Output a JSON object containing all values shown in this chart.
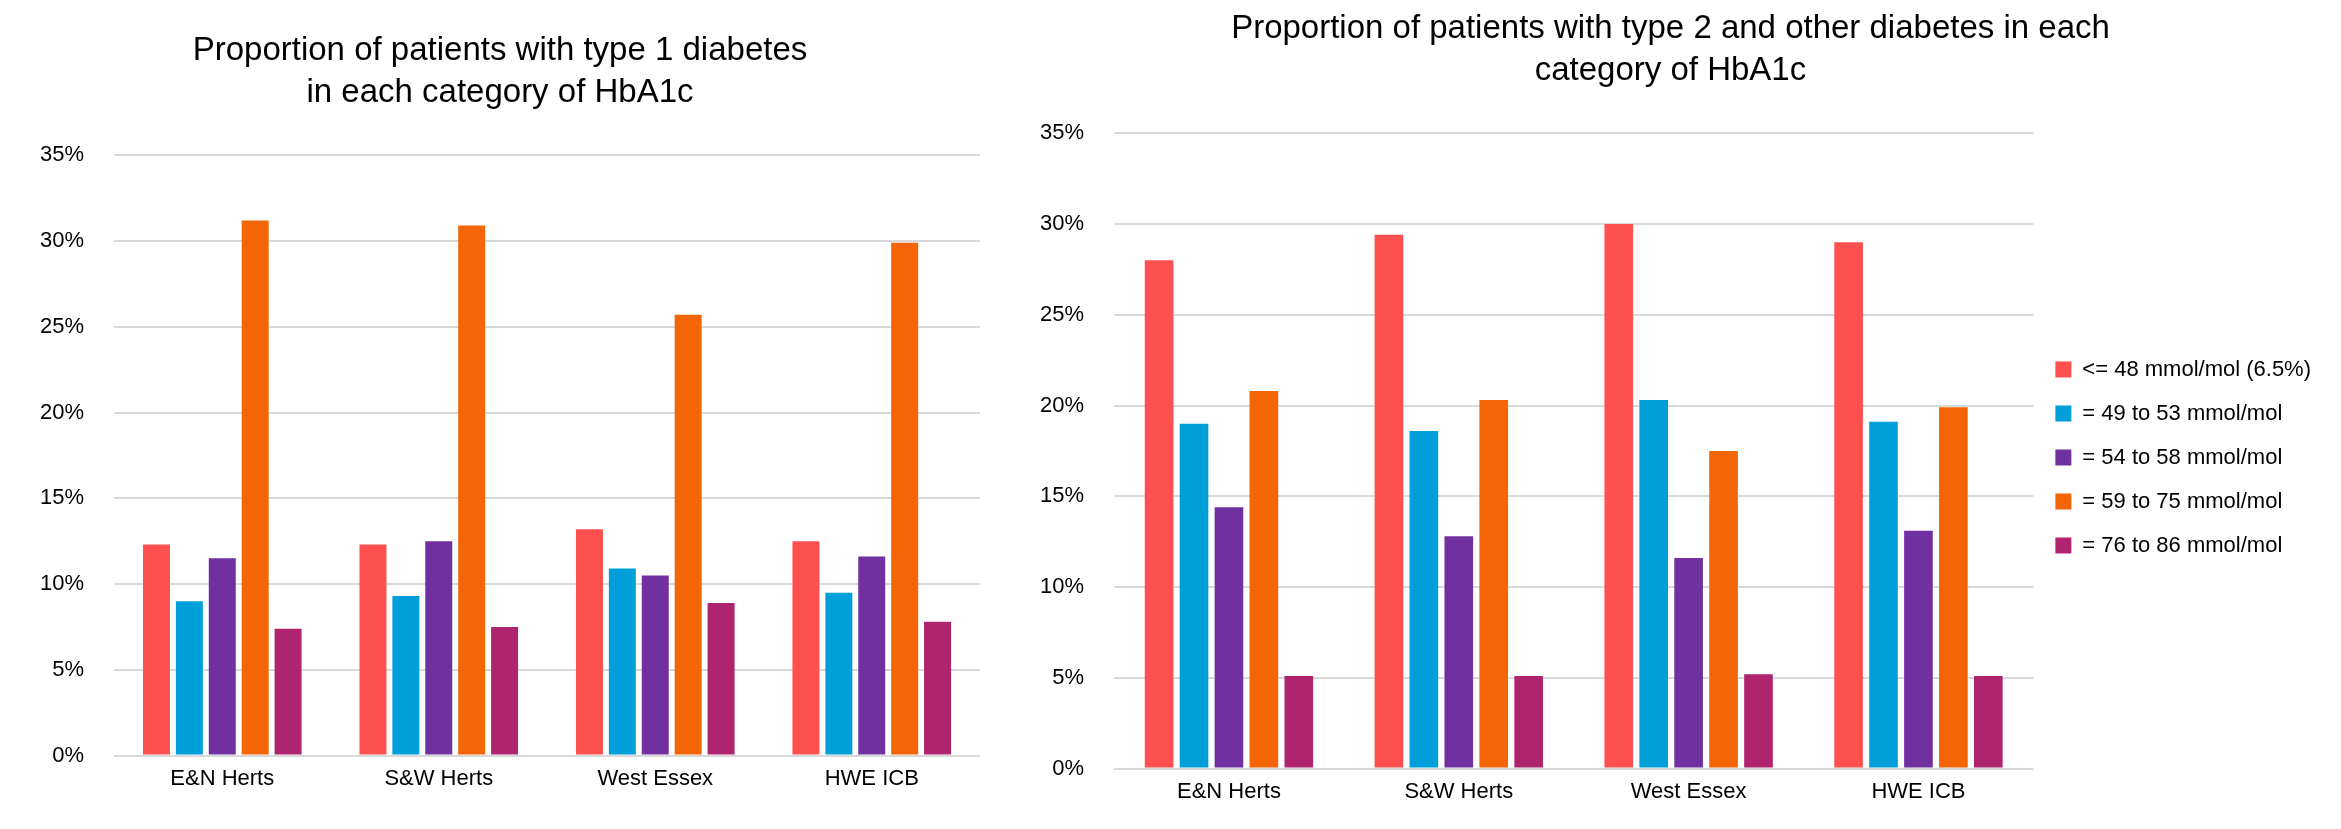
{
  "chart_data": [
    {
      "type": "bar",
      "title": "Proportion of patients with type 1 diabetes in each category of HbA1c",
      "categories": [
        "E&N Herts",
        "S&W Herts",
        "West Essex",
        "HWE ICB"
      ],
      "series": [
        {
          "color": "#ff5050",
          "values": [
            12.3,
            12.3,
            13.2,
            12.5
          ]
        },
        {
          "color": "#009fd9",
          "values": [
            9.0,
            9.3,
            10.9,
            9.5
          ]
        },
        {
          "color": "#7030a0",
          "values": [
            11.5,
            12.5,
            10.5,
            11.6
          ]
        },
        {
          "color": "#f46505",
          "values": [
            31.2,
            30.9,
            25.7,
            29.9
          ]
        },
        {
          "color": "#ae246e",
          "values": [
            7.4,
            7.5,
            8.9,
            7.8
          ]
        }
      ],
      "ylim": [
        0,
        35
      ],
      "yticks": [
        {
          "value": 0,
          "label": "0%"
        },
        {
          "value": 5,
          "label": "5%"
        },
        {
          "value": 10,
          "label": "10%"
        },
        {
          "value": 15,
          "label": "15%"
        },
        {
          "value": 20,
          "label": "20%"
        },
        {
          "value": 25,
          "label": "25%"
        },
        {
          "value": 30,
          "label": "30%"
        },
        {
          "value": 35,
          "label": "35%"
        }
      ],
      "grid": "y",
      "legend": false
    },
    {
      "type": "bar",
      "title": "Proportion of patients with type 2 and other diabetes in each category of HbA1c",
      "categories": [
        "E&N Herts",
        "S&W Herts",
        "West Essex",
        "HWE ICB"
      ],
      "series": [
        {
          "name": "<= 48 mmol/mol (6.5%)",
          "color": "#ff5050",
          "values": [
            28.0,
            29.4,
            30.0,
            29.0
          ]
        },
        {
          "name": "= 49 to 53 mmol/mol",
          "color": "#009fd9",
          "values": [
            19.0,
            18.6,
            20.3,
            19.1
          ]
        },
        {
          "name": "= 54 to 58 mmol/mol",
          "color": "#7030a0",
          "values": [
            14.4,
            12.8,
            11.6,
            13.1
          ]
        },
        {
          "name": "= 59 to 75 mmol/mol",
          "color": "#f46505",
          "values": [
            20.8,
            20.3,
            17.5,
            19.9
          ]
        },
        {
          "name": "= 76 to 86 mmol/mol",
          "color": "#ae246e",
          "values": [
            5.1,
            5.1,
            5.2,
            5.1
          ]
        }
      ],
      "ylim": [
        0,
        35
      ],
      "yticks": [
        {
          "value": 0,
          "label": "0%"
        },
        {
          "value": 5,
          "label": "5%"
        },
        {
          "value": 10,
          "label": "10%"
        },
        {
          "value": 15,
          "label": "15%"
        },
        {
          "value": 20,
          "label": "20%"
        },
        {
          "value": 25,
          "label": "25%"
        },
        {
          "value": 30,
          "label": "30%"
        },
        {
          "value": 35,
          "label": "35%"
        }
      ],
      "grid": "y",
      "legend": "right"
    }
  ]
}
